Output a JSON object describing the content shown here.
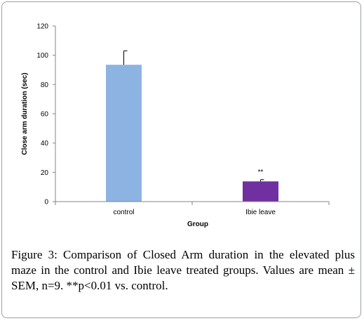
{
  "chart_data": {
    "type": "bar",
    "categories": [
      "control",
      "Ibie leave"
    ],
    "values": [
      93.5,
      13.8
    ],
    "errors": [
      9.5,
      1.2
    ],
    "colors": [
      "#8db3e2",
      "#7030a0"
    ],
    "annotations": [
      "",
      "**"
    ],
    "xlabel": "Group",
    "ylabel": "Close arm duration (sec)",
    "ylim": [
      0,
      120
    ],
    "yticks": [
      0,
      20,
      40,
      60,
      80,
      100,
      120
    ],
    "grid": false
  },
  "caption": {
    "label": "Figure 3:",
    "text": "Comparison of Closed Arm duration in the elevated plus maze in the control and Ibie leave treated groups. Values are mean ± SEM, n=9. **p<0.01 vs. control."
  }
}
